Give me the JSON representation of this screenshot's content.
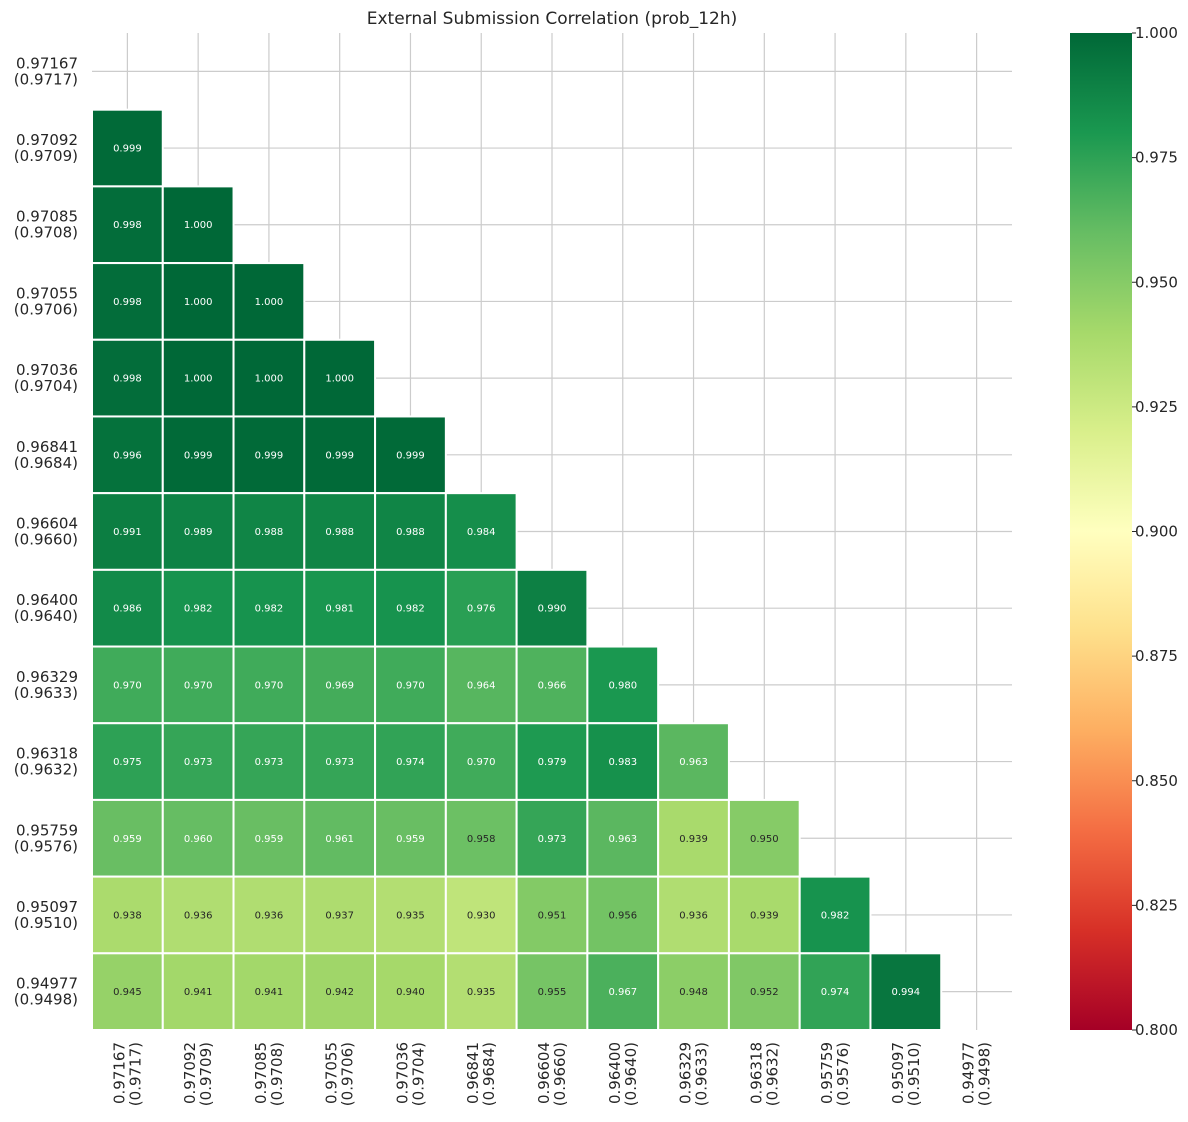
{
  "chart_data": {
    "type": "heatmap",
    "title": "External Submission Correlation (prob_12h)",
    "labels": [
      [
        "0.97167",
        "(0.9717)"
      ],
      [
        "0.97092",
        "(0.9709)"
      ],
      [
        "0.97085",
        "(0.9708)"
      ],
      [
        "0.97055",
        "(0.9706)"
      ],
      [
        "0.97036",
        "(0.9704)"
      ],
      [
        "0.96841",
        "(0.9684)"
      ],
      [
        "0.96604",
        "(0.9660)"
      ],
      [
        "0.96400",
        "(0.9640)"
      ],
      [
        "0.96329",
        "(0.9633)"
      ],
      [
        "0.96318",
        "(0.9632)"
      ],
      [
        "0.95759",
        "(0.9576)"
      ],
      [
        "0.95097",
        "(0.9510)"
      ],
      [
        "0.94977",
        "(0.9498)"
      ]
    ],
    "mask": "upper-triangle-including-diagonal",
    "rows": [
      [],
      [
        0.999
      ],
      [
        0.998,
        1.0
      ],
      [
        0.998,
        1.0,
        1.0
      ],
      [
        0.998,
        1.0,
        1.0,
        1.0
      ],
      [
        0.996,
        0.999,
        0.999,
        0.999,
        0.999
      ],
      [
        0.991,
        0.989,
        0.988,
        0.988,
        0.988,
        0.984
      ],
      [
        0.986,
        0.982,
        0.982,
        0.981,
        0.982,
        0.976,
        0.99
      ],
      [
        0.97,
        0.97,
        0.97,
        0.969,
        0.97,
        0.964,
        0.966,
        0.98
      ],
      [
        0.975,
        0.973,
        0.973,
        0.973,
        0.974,
        0.97,
        0.979,
        0.983,
        0.963
      ],
      [
        0.959,
        0.96,
        0.959,
        0.961,
        0.959,
        0.958,
        0.973,
        0.963,
        0.939,
        0.95
      ],
      [
        0.938,
        0.936,
        0.936,
        0.937,
        0.935,
        0.93,
        0.951,
        0.956,
        0.936,
        0.939,
        0.982
      ],
      [
        0.945,
        0.941,
        0.941,
        0.942,
        0.94,
        0.935,
        0.955,
        0.967,
        0.948,
        0.952,
        0.974,
        0.994
      ]
    ],
    "value_format": "3 decimals",
    "colormap": "RdYlGn",
    "vmin": 0.8,
    "vmax": 1.0,
    "colorbar_ticks": [
      "0.800",
      "0.825",
      "0.850",
      "0.875",
      "0.900",
      "0.925",
      "0.950",
      "0.975",
      "1.000"
    ],
    "grid": true,
    "grid_color": "#cccccc",
    "cell_border_color": "#ffffff"
  }
}
